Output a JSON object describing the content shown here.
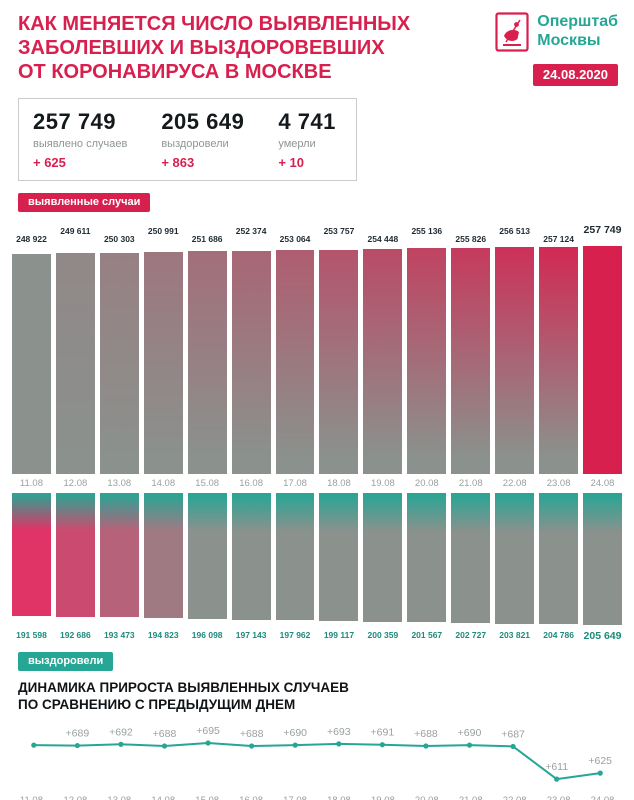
{
  "header": {
    "title_lines": [
      "КАК МЕНЯЕТСЯ ЧИСЛО ВЫЯВЛЕННЫХ",
      "ЗАБОЛЕВШИХ И ВЫЗДОРОВЕВШИХ",
      "ОТ КОРОНАВИРУСА В МОСКВЕ"
    ],
    "org_lines": [
      "Оперштаб",
      "Москвы"
    ],
    "date_badge": "24.08.2020"
  },
  "stats": [
    {
      "value": "257 749",
      "label": "выявлено случаев",
      "delta": "+ 625"
    },
    {
      "value": "205 649",
      "label": "выздоровели",
      "delta": "+ 863"
    },
    {
      "value": "4 741",
      "label": "умерли",
      "delta": "+ 10"
    }
  ],
  "badges": {
    "detected": "выявленные случаи",
    "recovered": "выздоровели"
  },
  "section_title_lines": [
    "ДИНАМИКА ПРИРОСТА ВЫЯВЛЕННЫХ СЛУЧАЕВ",
    "ПО СРАВНЕНИЮ С ПРЕДЫДУЩИМ ДНЕМ"
  ],
  "colors": {
    "crimson": "#d8204f",
    "pink": "#e03366",
    "teal": "#26a695",
    "gray_bar": "#8b918d",
    "label_gray": "#9aa19d",
    "value_dark": "#1f2a30",
    "value_teal": "#1d8a7b"
  },
  "chart_data": [
    {
      "type": "bar",
      "name": "detected_cases",
      "title": "выявленные случаи",
      "categories": [
        "11.08",
        "12.08",
        "13.08",
        "14.08",
        "15.08",
        "16.08",
        "17.08",
        "18.08",
        "19.08",
        "20.08",
        "21.08",
        "22.08",
        "23.08",
        "24.08"
      ],
      "values": [
        248922,
        249611,
        250303,
        250991,
        251686,
        252374,
        253064,
        253757,
        254448,
        255136,
        255826,
        256513,
        257124,
        257749
      ],
      "value_labels": [
        "248 922",
        "249 611",
        "250 303",
        "250 991",
        "251 686",
        "252 374",
        "253 064",
        "253 757",
        "254 448",
        "255 136",
        "255 826",
        "256 513",
        "257 124",
        "257 749"
      ],
      "ylim": [
        0,
        257749
      ],
      "grid": false,
      "orientation": "up"
    },
    {
      "type": "bar",
      "name": "recovered",
      "title": "выздоровели",
      "categories": [
        "11.08",
        "12.08",
        "13.08",
        "14.08",
        "15.08",
        "16.08",
        "17.08",
        "18.08",
        "19.08",
        "20.08",
        "21.08",
        "22.08",
        "23.08",
        "24.08"
      ],
      "values": [
        191598,
        192686,
        193473,
        194823,
        196098,
        197143,
        197962,
        199117,
        200359,
        201567,
        202727,
        203821,
        204786,
        205649
      ],
      "value_labels": [
        "191 598",
        "192 686",
        "193 473",
        "194 823",
        "196 098",
        "197 143",
        "197 962",
        "199 117",
        "200 359",
        "201 567",
        "202 727",
        "203 821",
        "204 786",
        "205 649"
      ],
      "ylim": [
        0,
        205649
      ],
      "grid": false,
      "orientation": "down"
    },
    {
      "type": "line",
      "name": "daily_increase",
      "title": "ДИНАМИКА ПРИРОСТА ВЫЯВЛЕННЫХ СЛУЧАЕВ ПО СРАВНЕНИЮ С ПРЕДЫДУЩИМ ДНЕМ",
      "categories": [
        "11.08",
        "12.08",
        "13.08",
        "14.08",
        "15.08",
        "16.08",
        "17.08",
        "18.08",
        "19.08",
        "20.08",
        "21.08",
        "22.08",
        "23.08",
        "24.08"
      ],
      "values": [
        690,
        689,
        692,
        688,
        695,
        688,
        690,
        693,
        691,
        688,
        690,
        687,
        611,
        625
      ],
      "point_labels": [
        "",
        "+689",
        "+692",
        "+688",
        "+695",
        "+688",
        "+690",
        "+693",
        "+691",
        "+688",
        "+690",
        "+687",
        "+611",
        "+625"
      ],
      "ylim": [
        600,
        700
      ],
      "grid": false,
      "legend": "none"
    }
  ]
}
